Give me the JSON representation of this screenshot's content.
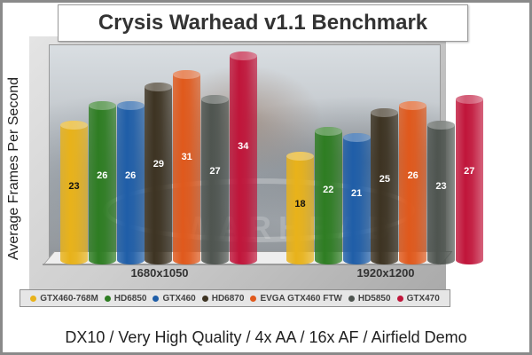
{
  "chart_data": {
    "type": "bar",
    "title": "Crysis Warhead v1.1 Benchmark",
    "subtitle": "DX10 / Very High Quality / 4x AA / 16x AF / Airfield Demo",
    "xlabel": "",
    "ylabel": "Average Frames Per Second",
    "categories": [
      "1680x1050",
      "1920x1200"
    ],
    "series": [
      {
        "name": "GTX460-768M",
        "color": "#e8b21a",
        "values": [
          23,
          18
        ],
        "label_color": "#111111"
      },
      {
        "name": "HD6850",
        "color": "#2e7d22",
        "values": [
          26,
          22
        ],
        "label_color": "#ffffff"
      },
      {
        "name": "GTX460",
        "color": "#1f5ea8",
        "values": [
          26,
          21
        ],
        "label_color": "#ffffff"
      },
      {
        "name": "HD6870",
        "color": "#3d3322",
        "values": [
          29,
          25
        ],
        "label_color": "#ffffff"
      },
      {
        "name": "EVGA GTX460 FTW",
        "color": "#e0591c",
        "values": [
          31,
          26
        ],
        "label_color": "#ffffff"
      },
      {
        "name": "HD5850",
        "color": "#4f5550",
        "values": [
          27,
          23
        ],
        "label_color": "#ffffff"
      },
      {
        "name": "GTX470",
        "color": "#c0153a",
        "values": [
          34,
          27
        ],
        "label_color": "#ffffff"
      }
    ],
    "ylim": [
      0,
      34
    ],
    "grid": false,
    "legend_position": "bottom",
    "data_labels": true,
    "style": "3d-cylinder"
  }
}
